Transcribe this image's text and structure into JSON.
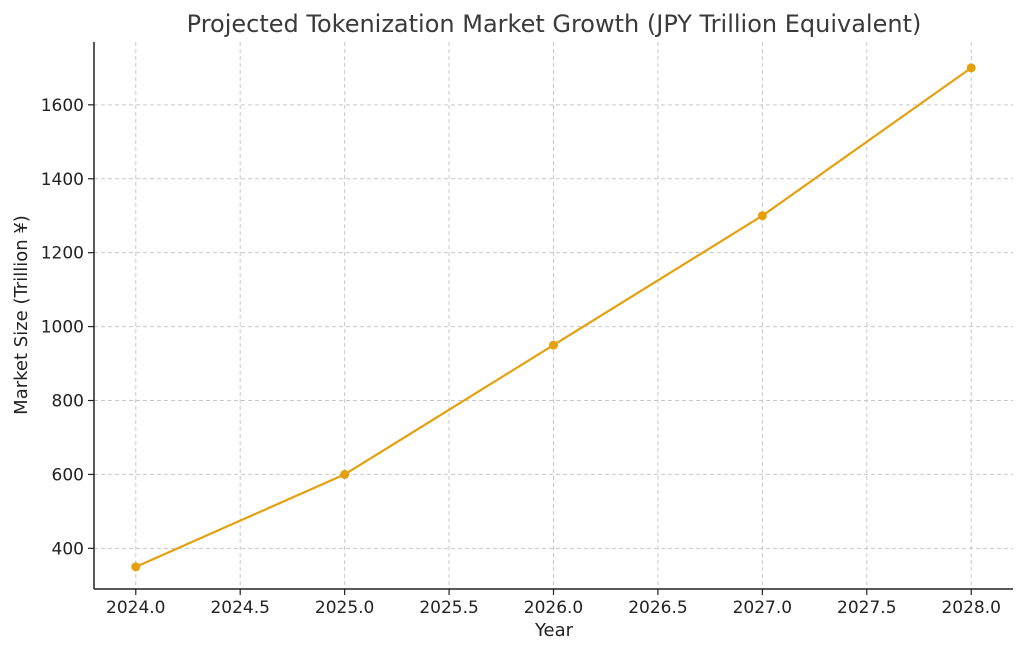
{
  "chart_data": {
    "type": "line",
    "title": "Projected Tokenization Market Growth (JPY Trillion Equivalent)",
    "xlabel": "Year",
    "ylabel": "Market Size (Trillion ¥)",
    "x": [
      2024.0,
      2025.0,
      2026.0,
      2027.0,
      2028.0
    ],
    "series": [
      {
        "values": [
          350,
          600,
          950,
          1300,
          1700
        ],
        "color": "#E5A00D"
      }
    ],
    "xlim": [
      2023.8,
      2028.2
    ],
    "ylim": [
      290,
      1770
    ],
    "xticks": [
      2024.0,
      2024.5,
      2025.0,
      2025.5,
      2026.0,
      2026.5,
      2027.0,
      2027.5,
      2028.0
    ],
    "xtick_labels": [
      "2024.0",
      "2024.5",
      "2025.0",
      "2025.5",
      "2026.0",
      "2026.5",
      "2027.0",
      "2027.5",
      "2028.0"
    ],
    "yticks": [
      400,
      600,
      800,
      1000,
      1200,
      1400,
      1600
    ],
    "ytick_labels": [
      "400",
      "600",
      "800",
      "1000",
      "1200",
      "1400",
      "1600"
    ],
    "grid": true,
    "marker": "circle"
  }
}
